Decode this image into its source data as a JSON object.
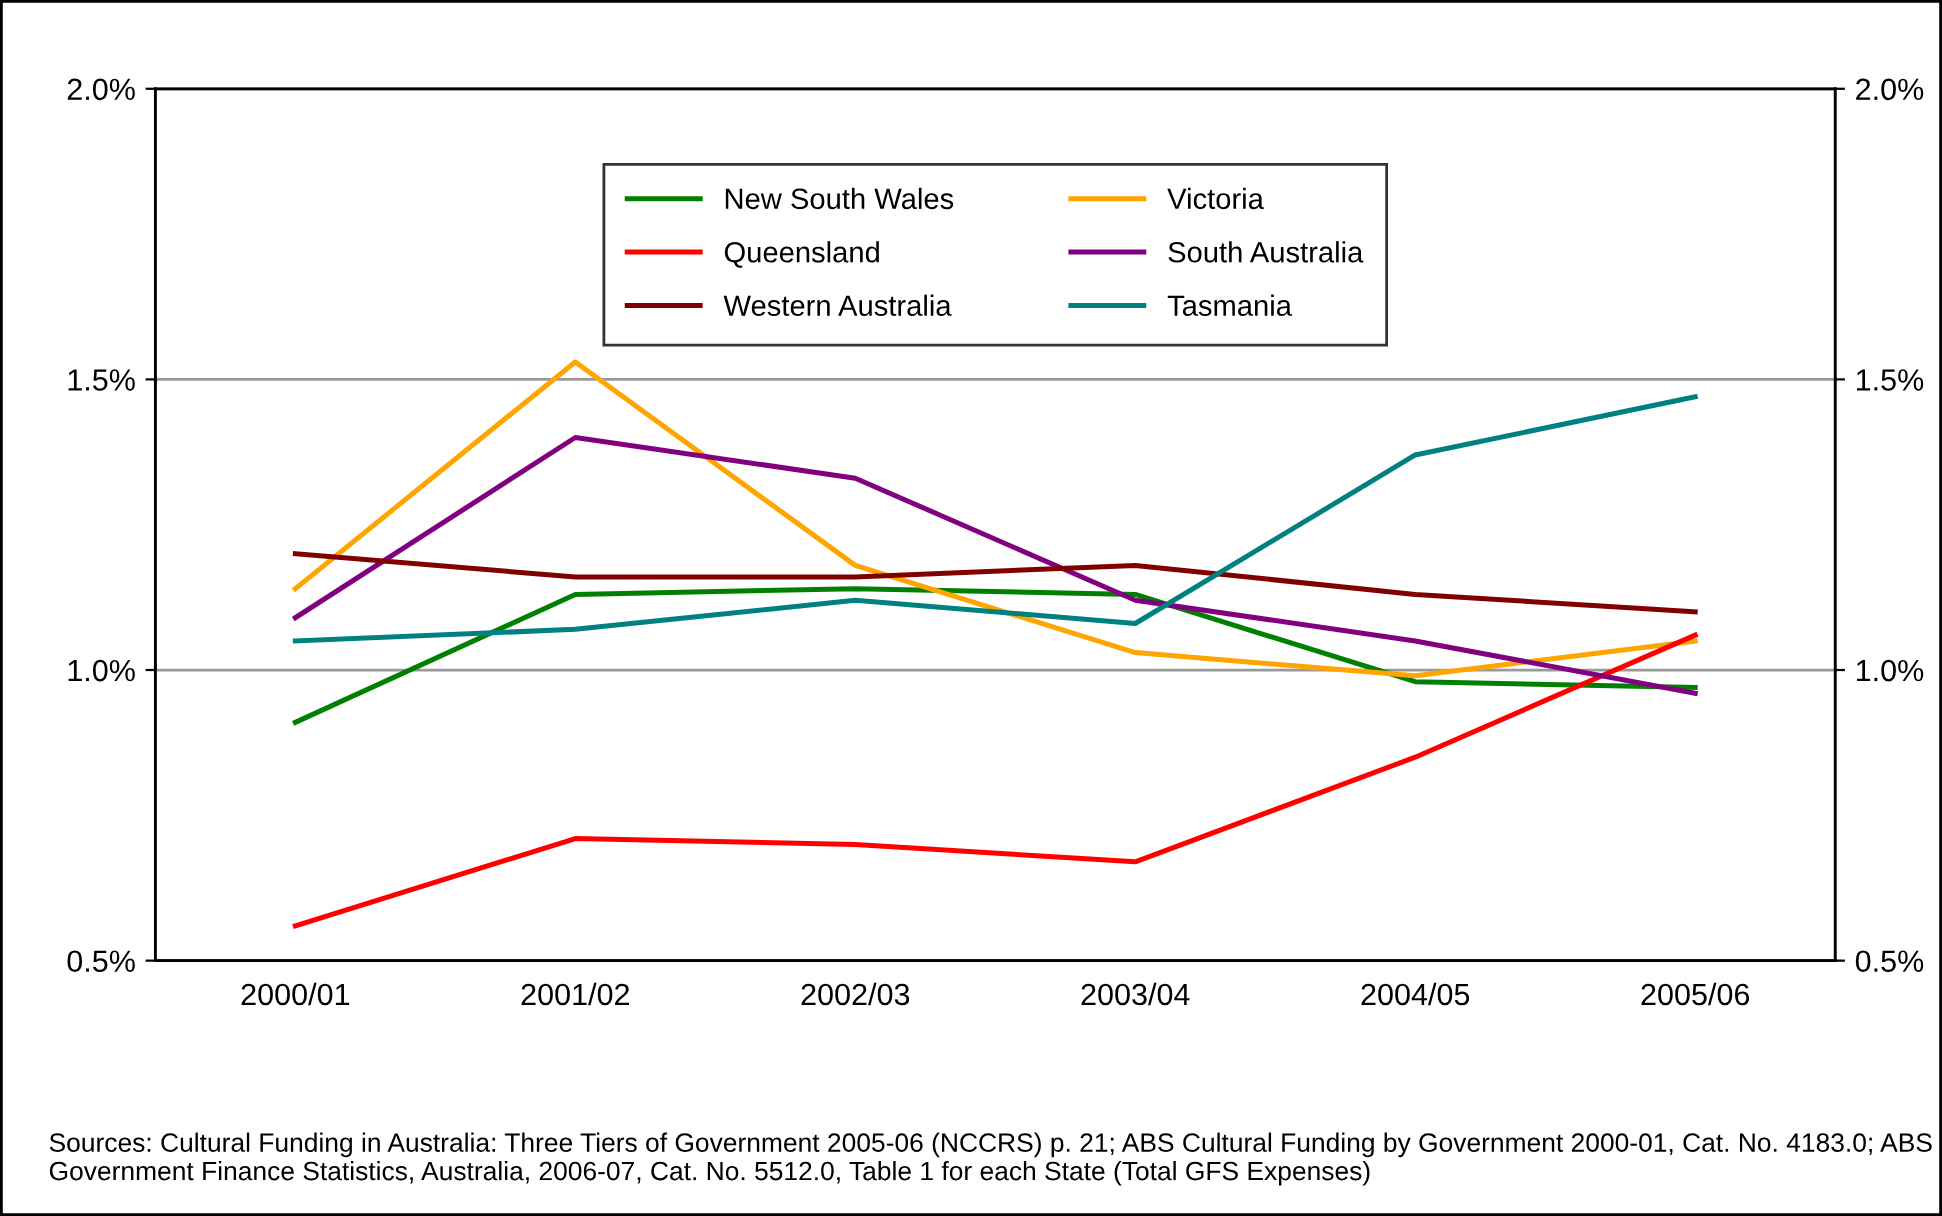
{
  "chart_data": {
    "type": "line",
    "categories": [
      "2000/01",
      "2001/02",
      "2002/03",
      "2003/04",
      "2004/05",
      "2005/06"
    ],
    "series": [
      {
        "name": "New South Wales",
        "color": "#008000",
        "values": [
          0.91,
          1.13,
          1.14,
          1.13,
          0.98,
          0.97
        ]
      },
      {
        "name": "Victoria",
        "color": "#ffa500",
        "values": [
          1.14,
          1.53,
          1.18,
          1.03,
          0.99,
          1.05
        ]
      },
      {
        "name": "Queensland",
        "color": "#ff0000",
        "values": [
          0.56,
          0.71,
          0.7,
          0.67,
          0.85,
          1.06
        ]
      },
      {
        "name": "South Australia",
        "color": "#800080",
        "values": [
          1.09,
          1.4,
          1.33,
          1.12,
          1.05,
          0.96
        ]
      },
      {
        "name": "Western Australia",
        "color": "#800000",
        "values": [
          1.2,
          1.16,
          1.16,
          1.18,
          1.13,
          1.1
        ]
      },
      {
        "name": "Tasmania",
        "color": "#008080",
        "values": [
          1.05,
          1.07,
          1.12,
          1.08,
          1.37,
          1.47
        ]
      }
    ],
    "ylim": [
      0.5,
      2.0
    ],
    "yticks": [
      {
        "value": 0.5,
        "label": "0.5%"
      },
      {
        "value": 1.0,
        "label": "1.0%"
      },
      {
        "value": 1.5,
        "label": "1.5%"
      },
      {
        "value": 2.0,
        "label": "2.0%"
      }
    ],
    "y2lim": [
      0.5,
      2.0
    ],
    "y2ticks": [
      {
        "value": 0.5,
        "label": "0.5%"
      },
      {
        "value": 1.0,
        "label": "1.0%"
      },
      {
        "value": 1.5,
        "label": "1.5%"
      },
      {
        "value": 2.0,
        "label": "2.0%"
      }
    ],
    "grid": "y",
    "legend": "top",
    "marker": "none",
    "line_style": "solid",
    "annotations": [
      "Sources: Cultural Funding in Australia: Three Tiers of Government 2005-06 (NCCRS) p. 21; ABS Cultural Funding by Government 2000-01, Cat. No. 4183.0; ABS  Government Finance Statistics, Australia, 2006-07, Cat. No. 5512.0, Table 1 for each State (Total GFS Expenses)"
    ]
  }
}
